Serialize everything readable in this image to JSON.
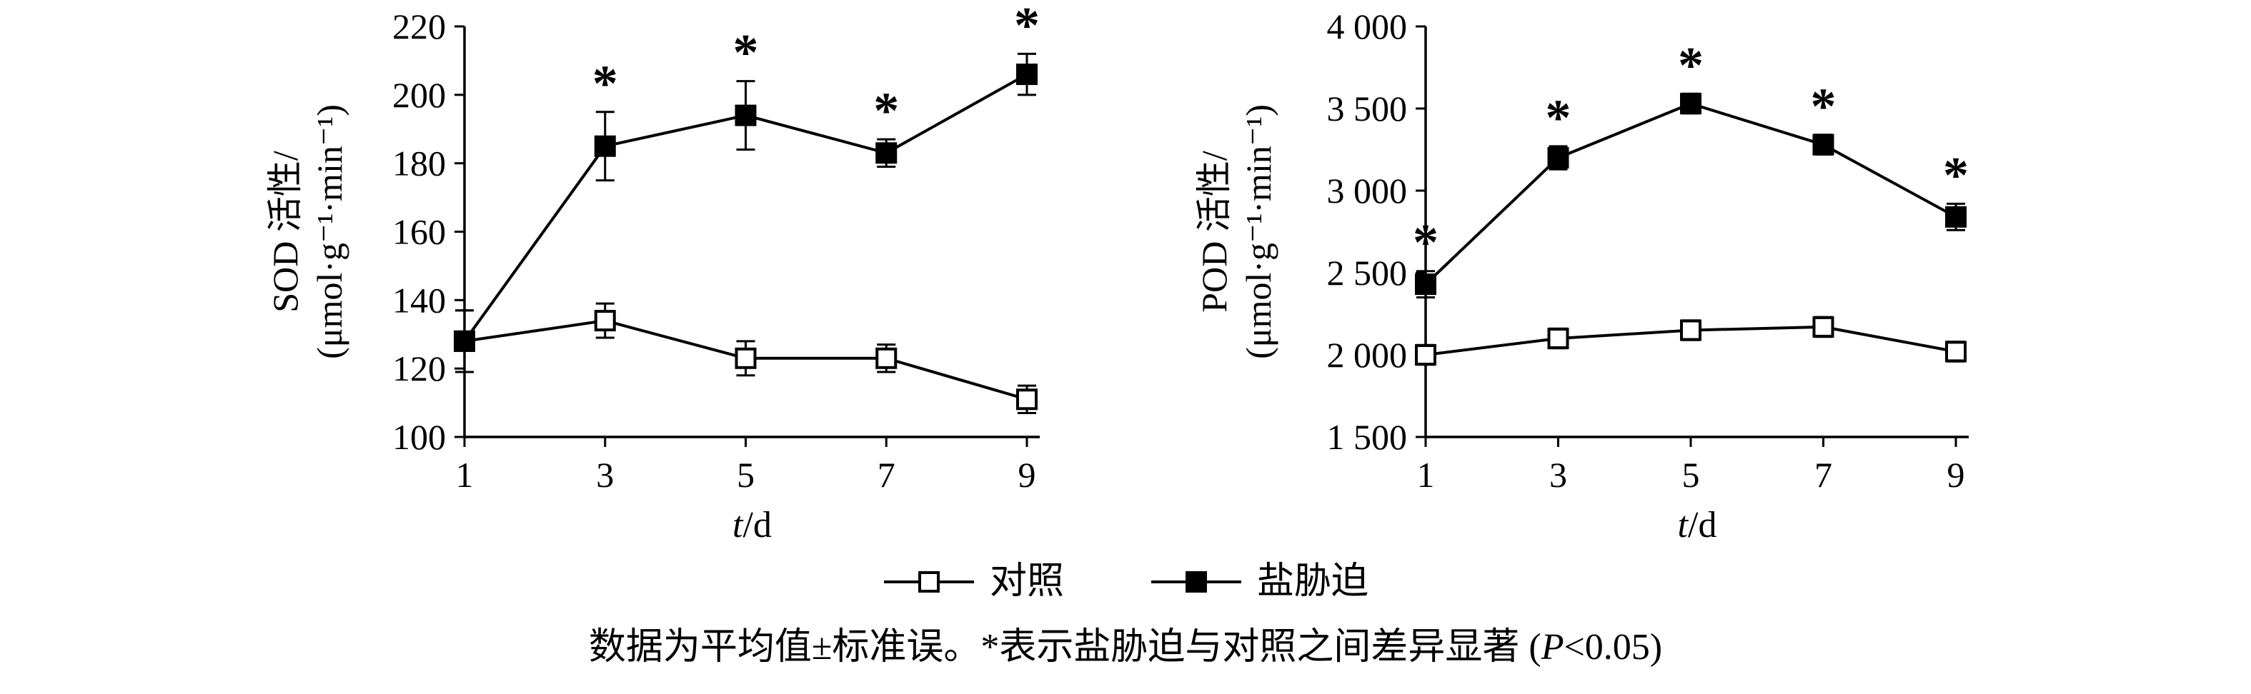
{
  "chart_data": [
    {
      "type": "line",
      "title": "",
      "xlabel": "t/d",
      "ylabel": "SOD 活性/(μmol·g⁻¹·min⁻¹)",
      "ylabel_lines": [
        "SOD 活性/",
        "(μmol·g⁻¹·min⁻¹)"
      ],
      "x": [
        1,
        3,
        5,
        7,
        9
      ],
      "xtick_labels": [
        "1",
        "3",
        "5",
        "7",
        "9"
      ],
      "xlim": [
        1,
        9
      ],
      "ylim": [
        100,
        220
      ],
      "yticks": [
        100,
        120,
        140,
        160,
        180,
        200,
        220
      ],
      "ytick_labels": [
        "100",
        "120",
        "140",
        "160",
        "180",
        "200",
        "220"
      ],
      "grid": false,
      "legend_position": "below-figure",
      "series": [
        {
          "name": "对照",
          "marker": "open-square",
          "values": [
            128,
            134,
            123,
            123,
            111
          ],
          "errors": [
            9,
            5,
            5,
            4,
            4
          ],
          "significant": [
            false,
            false,
            false,
            false,
            false
          ]
        },
        {
          "name": "盐胁迫",
          "marker": "filled-square",
          "values": [
            128,
            185,
            194,
            183,
            206
          ],
          "errors": [
            9,
            10,
            10,
            4,
            6
          ],
          "significant": [
            false,
            true,
            true,
            true,
            true
          ]
        }
      ]
    },
    {
      "type": "line",
      "title": "",
      "xlabel": "t/d",
      "ylabel": "POD 活性/(μmol·g⁻¹·min⁻¹)",
      "ylabel_lines": [
        "POD 活性/",
        "(μmol·g⁻¹·min⁻¹)"
      ],
      "x": [
        1,
        3,
        5,
        7,
        9
      ],
      "xtick_labels": [
        "1",
        "3",
        "5",
        "7",
        "9"
      ],
      "xlim": [
        1,
        9
      ],
      "ylim": [
        1500,
        4000
      ],
      "yticks": [
        1500,
        2000,
        2500,
        3000,
        3500,
        4000
      ],
      "ytick_labels": [
        "1 500",
        "2 000",
        "2 500",
        "3 000",
        "3 500",
        "4 000"
      ],
      "grid": false,
      "legend_position": "below-figure",
      "series": [
        {
          "name": "对照",
          "marker": "open-square",
          "values": [
            2000,
            2100,
            2150,
            2170,
            2020
          ],
          "errors": [
            60,
            60,
            60,
            60,
            60
          ],
          "significant": [
            false,
            false,
            false,
            false,
            false
          ]
        },
        {
          "name": "盐胁迫",
          "marker": "filled-square",
          "values": [
            2430,
            3200,
            3530,
            3280,
            2840
          ],
          "errors": [
            80,
            70,
            60,
            60,
            80
          ],
          "significant": [
            true,
            true,
            true,
            true,
            true
          ]
        }
      ]
    }
  ],
  "legend": {
    "items": [
      {
        "label": "对照",
        "marker": "open-square"
      },
      {
        "label": "盐胁迫",
        "marker": "filled-square"
      }
    ]
  },
  "caption": {
    "parts": [
      {
        "text": "数据为平均值±标准误。*表示盐胁迫与对照之间差异显著 (",
        "italic": false
      },
      {
        "text": "P",
        "italic": true
      },
      {
        "text": "<0.05)",
        "italic": false
      }
    ]
  },
  "significance_marker": "*",
  "colors": {
    "ink": "#000000",
    "background": "#ffffff"
  }
}
